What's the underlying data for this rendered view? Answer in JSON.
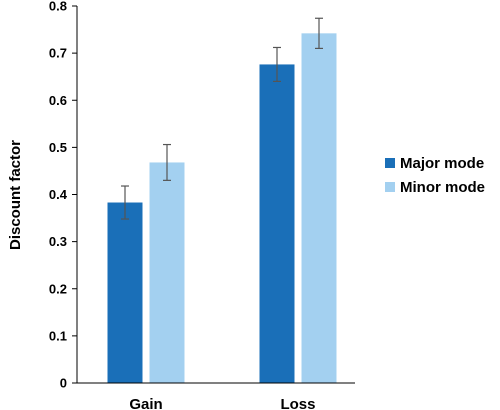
{
  "chart_data": {
    "type": "bar",
    "title": "",
    "xlabel": "",
    "ylabel": "Discount factor",
    "ylim": [
      0,
      0.8
    ],
    "yticks": [
      0,
      0.1,
      0.2,
      0.3,
      0.4,
      0.5,
      0.6,
      0.7,
      0.8
    ],
    "ytick_labels": [
      "0",
      "0.1",
      "0.2",
      "0.3",
      "0.4",
      "0.5",
      "0.6",
      "0.7",
      "0.8"
    ],
    "grid": false,
    "legend_position": "right",
    "categories": [
      "Gain",
      "Loss"
    ],
    "series": [
      {
        "name": "Major mode",
        "color": "#1a6fb8",
        "values": [
          0.383,
          0.676
        ],
        "error": [
          0.035,
          0.036
        ]
      },
      {
        "name": "Minor mode",
        "color": "#a3d0f0",
        "values": [
          0.468,
          0.742
        ],
        "error": [
          0.038,
          0.032
        ]
      }
    ]
  }
}
